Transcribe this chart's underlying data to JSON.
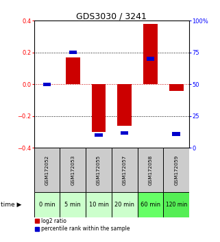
{
  "title": "GDS3030 / 3241",
  "samples": [
    "GSM172052",
    "GSM172053",
    "GSM172055",
    "GSM172057",
    "GSM172058",
    "GSM172059"
  ],
  "time_labels": [
    "0 min",
    "5 min",
    "10 min",
    "20 min",
    "60 min",
    "120 min"
  ],
  "log2_ratios": [
    0.0,
    0.17,
    -0.3,
    -0.26,
    0.38,
    -0.04
  ],
  "percentile_ranks": [
    50,
    75,
    10,
    12,
    70,
    11
  ],
  "ylim_left": [
    -0.4,
    0.4
  ],
  "ylim_right": [
    0,
    100
  ],
  "bar_color_red": "#cc0000",
  "bar_color_blue": "#0000cc",
  "zero_line_color": "#cc0000",
  "grid_color": "#000000",
  "bg_color": "#ffffff",
  "sample_bg_color": "#cccccc",
  "time_bg_colors": [
    "#ccffcc",
    "#ccffcc",
    "#ccffcc",
    "#ccffcc",
    "#66ff66",
    "#55ee55"
  ],
  "title_fontsize": 9,
  "tick_fontsize": 6,
  "label_fontsize": 7
}
